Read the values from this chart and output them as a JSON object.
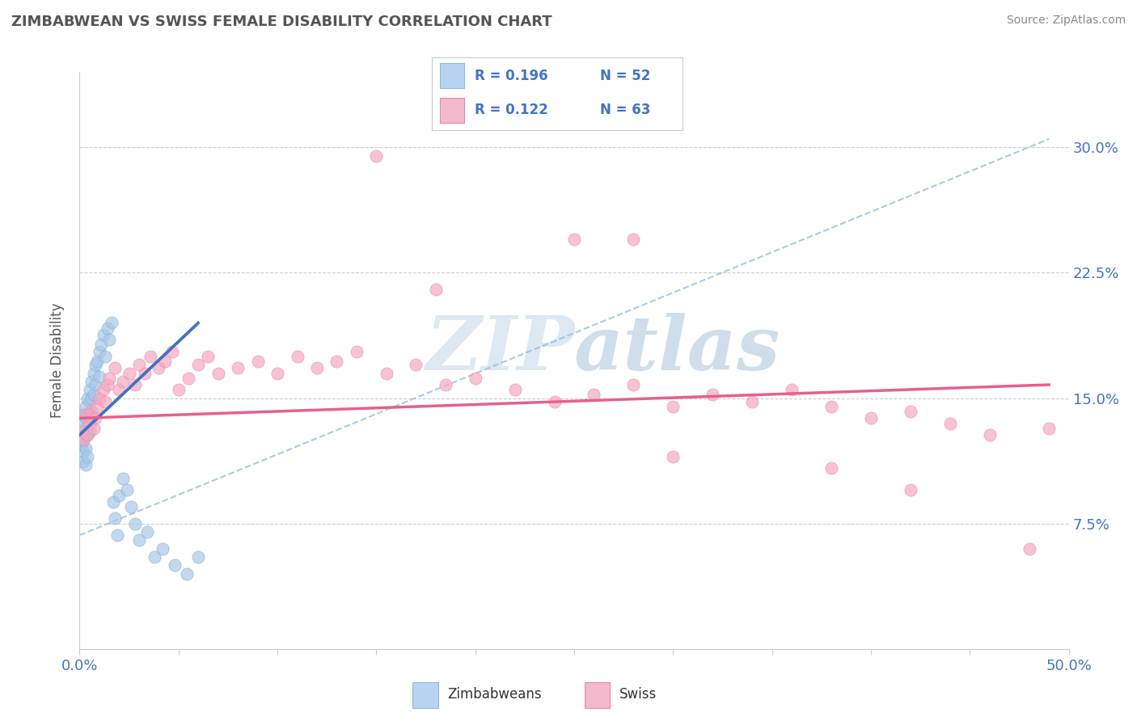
{
  "title": "ZIMBABWEAN VS SWISS FEMALE DISABILITY CORRELATION CHART",
  "source": "Source: ZipAtlas.com",
  "ylabel": "Female Disability",
  "xlim": [
    0.0,
    0.5
  ],
  "ylim": [
    0.0,
    0.345
  ],
  "ytick_positions": [
    0.075,
    0.15,
    0.225,
    0.3
  ],
  "ytick_labels": [
    "7.5%",
    "15.0%",
    "22.5%",
    "30.0%"
  ],
  "zimbabwe_color": "#a8c8e8",
  "swiss_color": "#f4a8c0",
  "zimbabwe_line_color": "#4472c4",
  "swiss_line_color": "#e8608a",
  "watermark_color": "#d0d8e8",
  "legend_R_zimbabwe": "0.196",
  "legend_N_zimbabwe": "52",
  "legend_R_swiss": "0.122",
  "legend_N_swiss": "63",
  "zimbabwe_points_x": [
    0.001,
    0.001,
    0.001,
    0.002,
    0.002,
    0.002,
    0.002,
    0.002,
    0.003,
    0.003,
    0.003,
    0.003,
    0.003,
    0.004,
    0.004,
    0.004,
    0.004,
    0.005,
    0.005,
    0.005,
    0.005,
    0.006,
    0.006,
    0.006,
    0.007,
    0.007,
    0.008,
    0.008,
    0.009,
    0.01,
    0.01,
    0.011,
    0.012,
    0.013,
    0.014,
    0.015,
    0.016,
    0.017,
    0.018,
    0.019,
    0.02,
    0.022,
    0.024,
    0.026,
    0.028,
    0.03,
    0.034,
    0.038,
    0.042,
    0.048,
    0.054,
    0.06
  ],
  "zimbabwe_points_y": [
    0.135,
    0.128,
    0.122,
    0.14,
    0.13,
    0.125,
    0.118,
    0.112,
    0.145,
    0.138,
    0.132,
    0.12,
    0.11,
    0.15,
    0.14,
    0.128,
    0.115,
    0.155,
    0.148,
    0.14,
    0.13,
    0.16,
    0.15,
    0.138,
    0.165,
    0.152,
    0.17,
    0.158,
    0.172,
    0.178,
    0.163,
    0.182,
    0.188,
    0.175,
    0.192,
    0.185,
    0.195,
    0.088,
    0.078,
    0.068,
    0.092,
    0.102,
    0.095,
    0.085,
    0.075,
    0.065,
    0.07,
    0.055,
    0.06,
    0.05,
    0.045,
    0.055
  ],
  "swiss_points_x": [
    0.001,
    0.002,
    0.003,
    0.004,
    0.005,
    0.006,
    0.007,
    0.008,
    0.009,
    0.01,
    0.012,
    0.013,
    0.014,
    0.015,
    0.018,
    0.02,
    0.022,
    0.025,
    0.028,
    0.03,
    0.033,
    0.036,
    0.04,
    0.043,
    0.047,
    0.05,
    0.055,
    0.06,
    0.065,
    0.07,
    0.08,
    0.09,
    0.1,
    0.11,
    0.12,
    0.13,
    0.14,
    0.155,
    0.17,
    0.185,
    0.2,
    0.22,
    0.24,
    0.26,
    0.28,
    0.3,
    0.32,
    0.34,
    0.36,
    0.38,
    0.4,
    0.42,
    0.44,
    0.46,
    0.49,
    0.15,
    0.28,
    0.38,
    0.48,
    0.3,
    0.18,
    0.25,
    0.42
  ],
  "swiss_points_y": [
    0.13,
    0.125,
    0.14,
    0.128,
    0.135,
    0.142,
    0.132,
    0.138,
    0.145,
    0.15,
    0.155,
    0.148,
    0.158,
    0.162,
    0.168,
    0.155,
    0.16,
    0.165,
    0.158,
    0.17,
    0.165,
    0.175,
    0.168,
    0.172,
    0.178,
    0.155,
    0.162,
    0.17,
    0.175,
    0.165,
    0.168,
    0.172,
    0.165,
    0.175,
    0.168,
    0.172,
    0.178,
    0.165,
    0.17,
    0.158,
    0.162,
    0.155,
    0.148,
    0.152,
    0.158,
    0.145,
    0.152,
    0.148,
    0.155,
    0.145,
    0.138,
    0.142,
    0.135,
    0.128,
    0.132,
    0.295,
    0.245,
    0.108,
    0.06,
    0.115,
    0.215,
    0.245,
    0.095
  ],
  "zim_trend_x0": 0.0,
  "zim_trend_y0": 0.128,
  "zim_trend_x1": 0.06,
  "zim_trend_y1": 0.195,
  "swiss_trend_x0": 0.0,
  "swiss_trend_y0": 0.138,
  "swiss_trend_x1": 0.49,
  "swiss_trend_y1": 0.158,
  "dash_trend_x0": 0.0,
  "dash_trend_y0": 0.068,
  "dash_trend_x1": 0.49,
  "dash_trend_y1": 0.305
}
